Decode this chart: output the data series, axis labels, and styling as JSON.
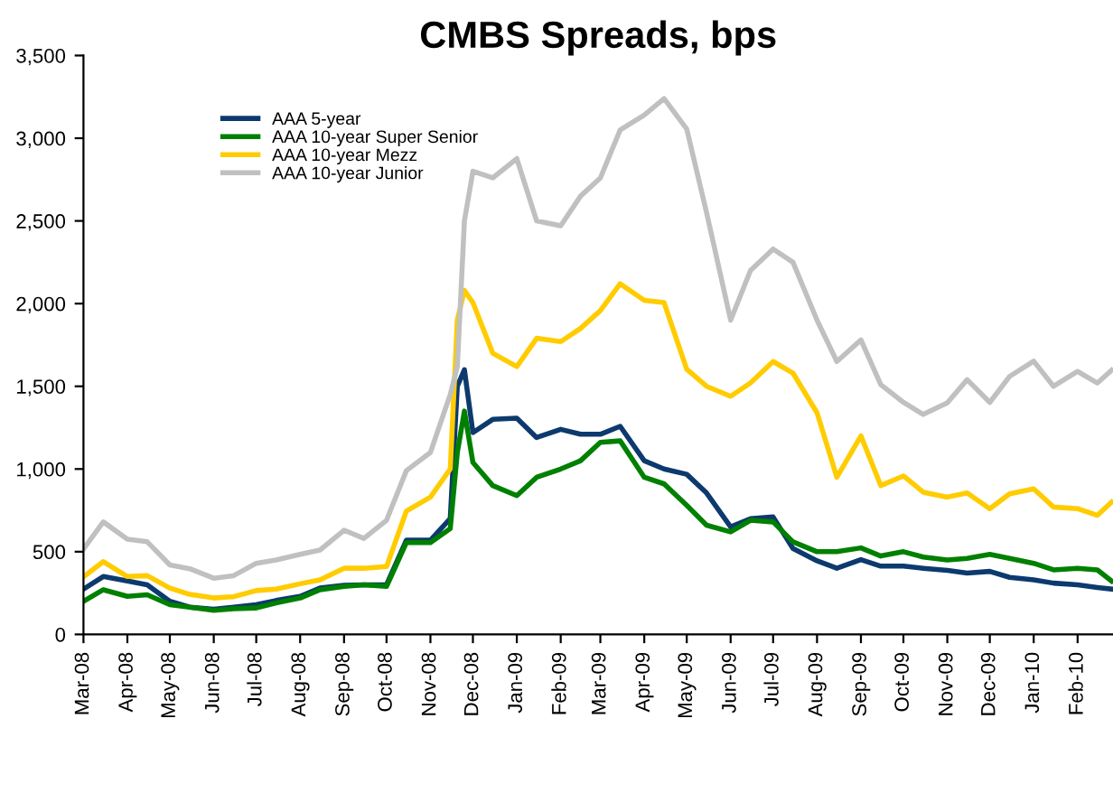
{
  "chart_data": {
    "type": "line",
    "title": "CMBS Spreads, bps",
    "x": [
      "2008-03-01",
      "2008-03-15",
      "2008-04-01",
      "2008-04-15",
      "2008-05-01",
      "2008-05-15",
      "2008-06-01",
      "2008-06-15",
      "2008-07-01",
      "2008-07-15",
      "2008-08-01",
      "2008-08-15",
      "2008-09-01",
      "2008-09-15",
      "2008-10-01",
      "2008-10-15",
      "2008-11-01",
      "2008-11-15",
      "2008-11-20",
      "2008-11-25",
      "2008-12-01",
      "2008-12-15",
      "2009-01-01",
      "2009-01-15",
      "2009-02-01",
      "2009-02-15",
      "2009-03-01",
      "2009-03-15",
      "2009-04-01",
      "2009-04-15",
      "2009-05-01",
      "2009-05-15",
      "2009-06-01",
      "2009-06-15",
      "2009-07-01",
      "2009-07-15",
      "2009-08-01",
      "2009-08-15",
      "2009-09-01",
      "2009-09-15",
      "2009-10-01",
      "2009-10-15",
      "2009-11-01",
      "2009-11-15",
      "2009-12-01",
      "2009-12-15",
      "2010-01-01",
      "2010-01-15",
      "2010-02-01",
      "2010-02-15",
      "2010-02-25"
    ],
    "series": [
      {
        "name": "AAA 5-year",
        "color": "#0d3a6e",
        "values": [
          274,
          350,
          323,
          300,
          200,
          165,
          152,
          165,
          180,
          205,
          230,
          280,
          297,
          300,
          300,
          570,
          570,
          700,
          1500,
          1600,
          1220,
          1300,
          1307,
          1190,
          1240,
          1210,
          1210,
          1258,
          1050,
          1000,
          968,
          855,
          650,
          700,
          710,
          520,
          445,
          400,
          452,
          413,
          413,
          400,
          387,
          371,
          381,
          345,
          330,
          310,
          300,
          284,
          274
        ]
      },
      {
        "name": "AAA 10-year Super Senior",
        "color": "#008000",
        "values": [
          200,
          270,
          230,
          240,
          180,
          165,
          145,
          155,
          160,
          190,
          220,
          270,
          290,
          300,
          290,
          555,
          555,
          640,
          1100,
          1350,
          1040,
          900,
          839,
          950,
          1000,
          1050,
          1161,
          1170,
          950,
          910,
          780,
          660,
          620,
          690,
          680,
          560,
          500,
          500,
          523,
          474,
          500,
          468,
          450,
          460,
          484,
          460,
          430,
          390,
          400,
          390,
          323
        ]
      },
      {
        "name": "AAA 10-year Mezz",
        "color": "#ffcc00",
        "values": [
          348,
          440,
          350,
          355,
          280,
          242,
          220,
          228,
          265,
          274,
          306,
          330,
          400,
          400,
          410,
          745,
          830,
          1000,
          1900,
          2080,
          2006,
          1700,
          1619,
          1790,
          1770,
          1850,
          1958,
          2120,
          2020,
          2006,
          1603,
          1500,
          1440,
          1520,
          1650,
          1580,
          1340,
          950,
          1200,
          900,
          958,
          860,
          830,
          855,
          760,
          850,
          880,
          770,
          760,
          720,
          800
        ]
      },
      {
        "name": "AAA 10-year Junior",
        "color": "#c0c0c0",
        "values": [
          516,
          680,
          575,
          560,
          420,
          397,
          340,
          355,
          430,
          450,
          484,
          510,
          630,
          580,
          690,
          990,
          1100,
          1450,
          1620,
          2500,
          2800,
          2760,
          2877,
          2500,
          2470,
          2650,
          2760,
          3050,
          3140,
          3240,
          3055,
          2550,
          1900,
          2200,
          2330,
          2250,
          1900,
          1650,
          1780,
          1510,
          1403,
          1330,
          1400,
          1540,
          1403,
          1560,
          1652,
          1500,
          1590,
          1520,
          1597
        ]
      }
    ],
    "xlim": [
      "2008-03-01",
      "2010-02-26"
    ],
    "xticks": [
      {
        "value": "2008-03-01",
        "label": "Mar-08"
      },
      {
        "value": "2008-04-01",
        "label": "Apr-08"
      },
      {
        "value": "2008-05-01",
        "label": "May-08"
      },
      {
        "value": "2008-06-01",
        "label": "Jun-08"
      },
      {
        "value": "2008-07-01",
        "label": "Jul-08"
      },
      {
        "value": "2008-08-01",
        "label": "Aug-08"
      },
      {
        "value": "2008-09-01",
        "label": "Sep-08"
      },
      {
        "value": "2008-10-01",
        "label": "Oct-08"
      },
      {
        "value": "2008-11-01",
        "label": "Nov-08"
      },
      {
        "value": "2008-12-01",
        "label": "Dec-08"
      },
      {
        "value": "2009-01-01",
        "label": "Jan-09"
      },
      {
        "value": "2009-02-01",
        "label": "Feb-09"
      },
      {
        "value": "2009-03-01",
        "label": "Mar-09"
      },
      {
        "value": "2009-04-01",
        "label": "Apr-09"
      },
      {
        "value": "2009-05-01",
        "label": "May-09"
      },
      {
        "value": "2009-06-01",
        "label": "Jun-09"
      },
      {
        "value": "2009-07-01",
        "label": "Jul-09"
      },
      {
        "value": "2009-08-01",
        "label": "Aug-09"
      },
      {
        "value": "2009-09-01",
        "label": "Sep-09"
      },
      {
        "value": "2009-10-01",
        "label": "Oct-09"
      },
      {
        "value": "2009-11-01",
        "label": "Nov-09"
      },
      {
        "value": "2009-12-01",
        "label": "Dec-09"
      },
      {
        "value": "2010-01-01",
        "label": "Jan-10"
      },
      {
        "value": "2010-02-01",
        "label": "Feb-10"
      }
    ],
    "ylim": [
      0,
      3500
    ],
    "yticks": [
      0,
      500,
      {
        "value": 1000,
        "label": "1,000"
      },
      {
        "value": 1500,
        "label": "1,500"
      },
      {
        "value": 2000,
        "label": "2,000"
      },
      {
        "value": 2500,
        "label": "2,500"
      },
      {
        "value": 3000,
        "label": "3,000"
      },
      {
        "value": 3500,
        "label": "3,500"
      }
    ],
    "grid": false,
    "legend": "top left",
    "marker": "none",
    "line_style": "solid"
  }
}
